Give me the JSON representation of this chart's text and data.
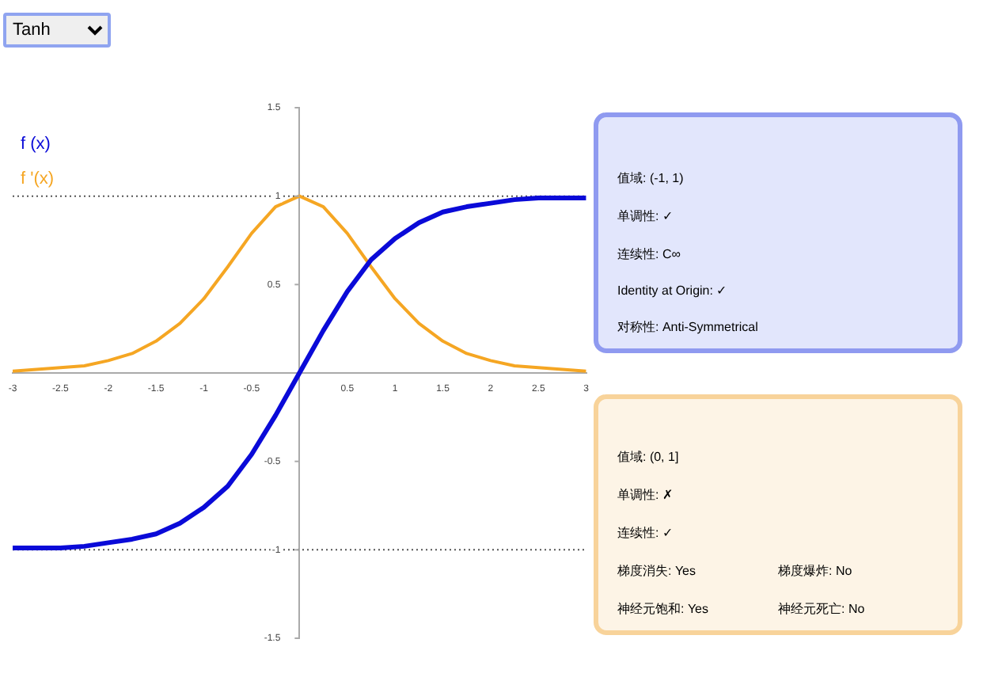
{
  "chart_data": [
    {
      "type": "line",
      "title": "Tanh",
      "x": [
        -3,
        -2.75,
        -2.5,
        -2.25,
        -2,
        -1.75,
        -1.5,
        -1.25,
        -1,
        -0.75,
        -0.5,
        -0.25,
        0,
        0.25,
        0.5,
        0.75,
        1,
        1.25,
        1.5,
        1.75,
        2,
        2.25,
        2.5,
        2.75,
        3
      ],
      "series": [
        {
          "name": "f (x)",
          "color": "#0a0ad8",
          "values": [
            -0.99,
            -0.99,
            -0.99,
            -0.98,
            -0.96,
            -0.94,
            -0.91,
            -0.85,
            -0.76,
            -0.64,
            -0.46,
            -0.24,
            0,
            0.24,
            0.46,
            0.64,
            0.76,
            0.85,
            0.91,
            0.94,
            0.96,
            0.98,
            0.99,
            0.99,
            0.99
          ]
        },
        {
          "name": "f '(x)",
          "color": "#f5a623",
          "values": [
            0.01,
            0.02,
            0.03,
            0.04,
            0.07,
            0.11,
            0.18,
            0.28,
            0.42,
            0.6,
            0.79,
            0.94,
            1,
            0.94,
            0.79,
            0.6,
            0.42,
            0.28,
            0.18,
            0.11,
            0.07,
            0.04,
            0.03,
            0.02,
            0.01
          ]
        }
      ],
      "xlim": [
        -3,
        3
      ],
      "xticks": [
        -3,
        -2.5,
        -2,
        -1.5,
        -1,
        -0.5,
        0.5,
        1,
        1.5,
        2,
        2.5,
        3
      ],
      "ylim": [
        -1.5,
        1.5
      ],
      "yticks": [
        -1.5,
        -1,
        -0.5,
        0.5,
        1,
        1.5
      ],
      "ref_lines": [
        {
          "axis": "y",
          "value": 1,
          "color": "#555555",
          "line_style": "dotted"
        },
        {
          "axis": "y",
          "value": -1,
          "color": "#555555",
          "line_style": "dotted"
        }
      ],
      "grid": false,
      "legend": "top left",
      "marker": "none",
      "line_style": "solid"
    },
    {
      "type": "other",
      "annotations": [
        "值域: (-1, 1)",
        "单调性: ✓",
        "连续性: C∞",
        "Identity at Origin: ✓",
        "对称性: Anti-Symmetrical"
      ]
    },
    {
      "type": "other",
      "annotations": [
        "值域: (0, 1]",
        "单调性: ✗",
        "连续性: ✓",
        "梯度消失: Yes",
        "梯度爆炸: No",
        "神经元饱和: Yes",
        "神经元死亡: No"
      ]
    }
  ]
}
